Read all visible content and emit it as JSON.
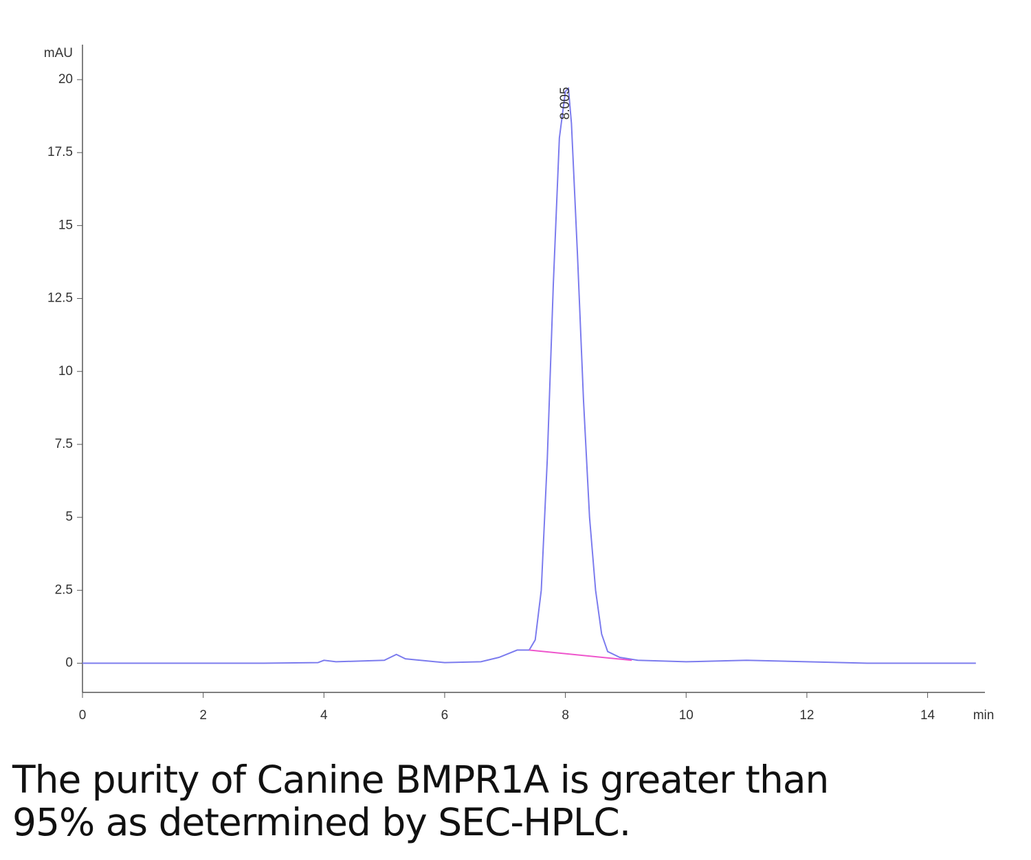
{
  "chart_data": {
    "type": "line",
    "y_label": "mAU",
    "x_label": "min",
    "xlim": [
      0,
      14.95
    ],
    "ylim": [
      -1,
      21.2
    ],
    "xticks": [
      0,
      2,
      4,
      6,
      8,
      10,
      12,
      14
    ],
    "yticks": [
      0,
      2.5,
      5,
      7.5,
      10,
      12.5,
      15,
      17.5,
      20
    ],
    "annotations": [
      {
        "text": "8.005",
        "x": 8.005,
        "y": 19.7
      }
    ],
    "series": [
      {
        "color": "#7b7bee",
        "x": [
          0,
          1,
          2,
          3,
          3.9,
          4.0,
          4.2,
          5.0,
          5.2,
          5.35,
          6.0,
          6.6,
          6.9,
          7.2,
          7.4,
          7.5,
          7.6,
          7.7,
          7.8,
          7.9,
          8.0,
          8.05,
          8.1,
          8.2,
          8.3,
          8.4,
          8.5,
          8.6,
          8.7,
          8.9,
          9.2,
          10,
          11,
          12,
          13,
          14,
          14.8
        ],
        "values": [
          0,
          0,
          0,
          0,
          0.02,
          0.1,
          0.05,
          0.1,
          0.3,
          0.15,
          0.02,
          0.05,
          0.2,
          0.45,
          0.45,
          0.8,
          2.5,
          7,
          13,
          18,
          19.6,
          19.7,
          18.5,
          14,
          9,
          5,
          2.5,
          1,
          0.4,
          0.2,
          0.1,
          0.05,
          0.1,
          0.05,
          0,
          0,
          0
        ]
      },
      {
        "color": "#ee55cc",
        "x": [
          7.4,
          9.1
        ],
        "values": [
          0.45,
          0.1
        ]
      }
    ]
  },
  "caption": [
    "The purity of Canine BMPR1A is greater than",
    "95% as determined by SEC-HPLC."
  ]
}
